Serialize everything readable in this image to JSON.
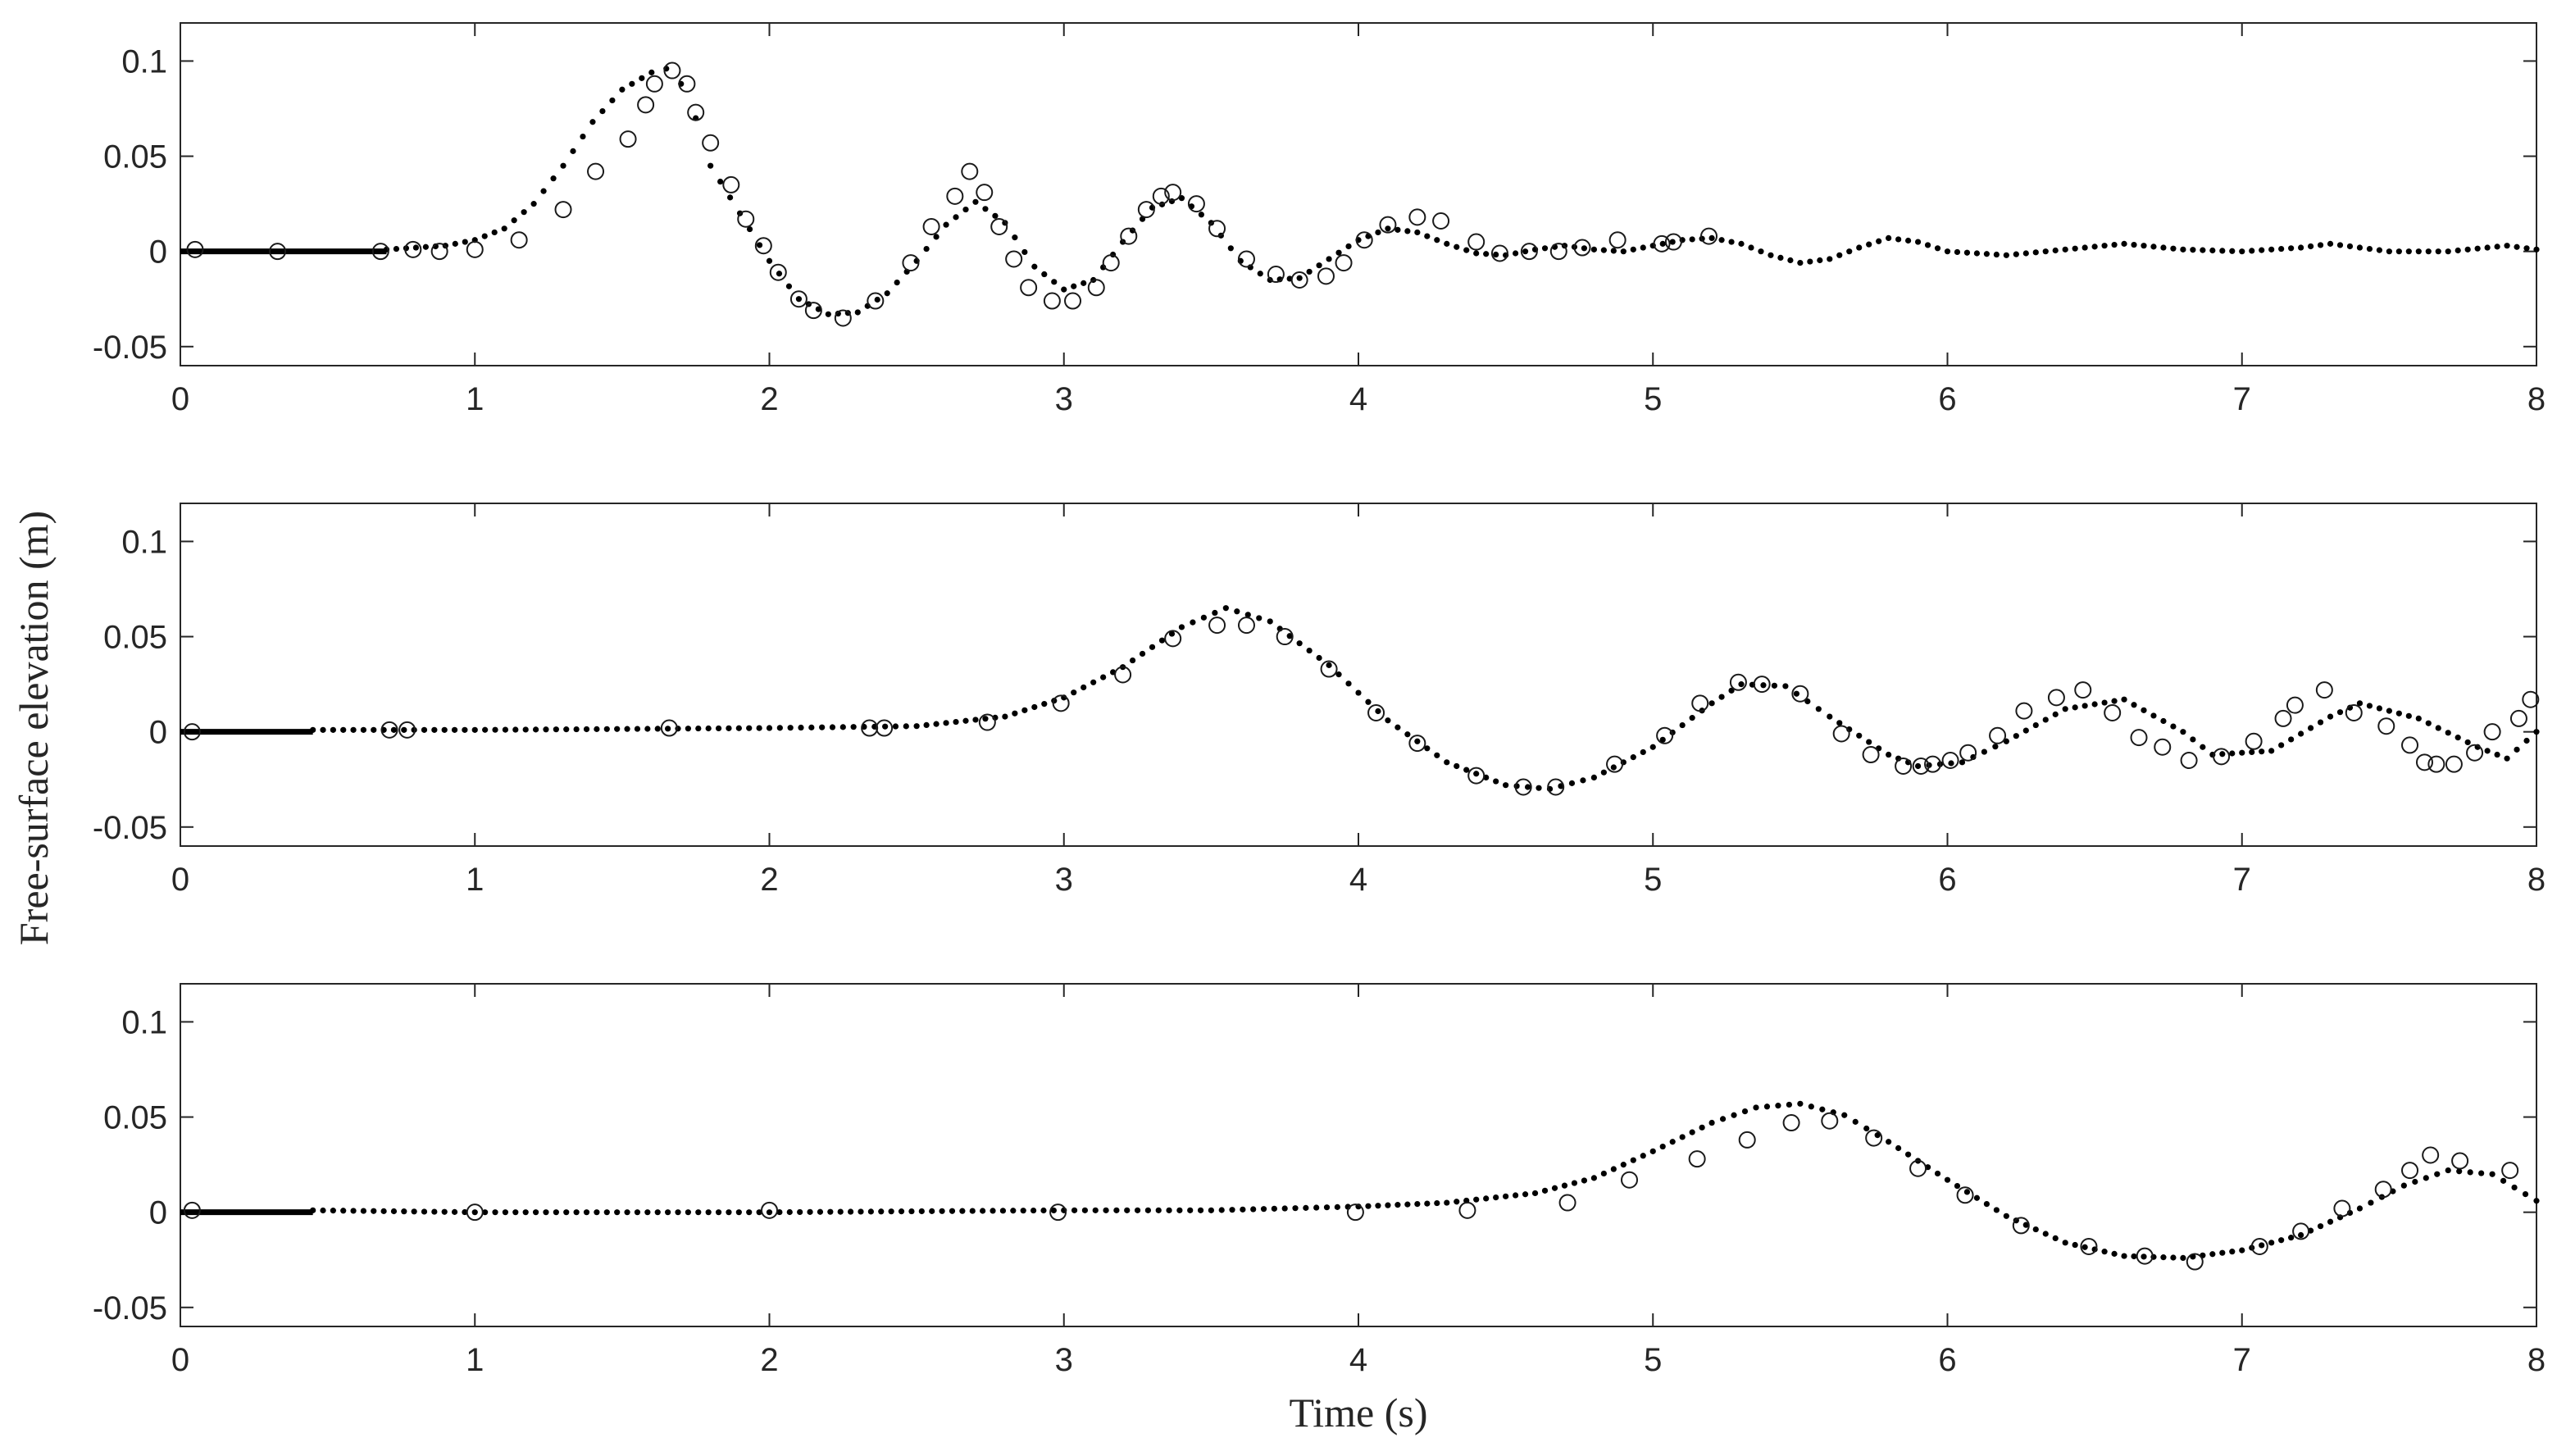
{
  "ylabel": "Free-surface elevation (m)",
  "xlabel": "Time (s)",
  "chart_data": [
    {
      "type": "scatter",
      "xlim": [
        0,
        8
      ],
      "ylim": [
        -0.06,
        0.12
      ],
      "xticks": [
        "0",
        "1",
        "2",
        "3",
        "4",
        "5",
        "6",
        "7",
        "8"
      ],
      "yticks": [
        "0.1",
        "0.05",
        "0",
        "-0.05"
      ],
      "series": [
        {
          "style": "dotted-line",
          "x": [
            0.7,
            0.8,
            0.9,
            1.0,
            1.1,
            1.2,
            1.3,
            1.4,
            1.5,
            1.6,
            1.65,
            1.7,
            1.75,
            1.8,
            1.9,
            2.0,
            2.1,
            2.2,
            2.3,
            2.4,
            2.5,
            2.6,
            2.7,
            2.8,
            2.9,
            3.0,
            3.1,
            3.2,
            3.3,
            3.4,
            3.5,
            3.6,
            3.7,
            3.8,
            3.9,
            4.0,
            4.1,
            4.2,
            4.3,
            4.4,
            4.5,
            4.6,
            4.7,
            4.8,
            4.9,
            5.0,
            5.1,
            5.2,
            5.3,
            5.4,
            5.5,
            5.6,
            5.7,
            5.8,
            5.9,
            6.0,
            6.2,
            6.4,
            6.6,
            6.8,
            7.0,
            7.2,
            7.3,
            7.5,
            7.7,
            7.9,
            8.0
          ],
          "y": [
            0.001,
            0.002,
            0.003,
            0.006,
            0.012,
            0.025,
            0.045,
            0.068,
            0.085,
            0.094,
            0.096,
            0.088,
            0.07,
            0.045,
            0.02,
            -0.005,
            -0.025,
            -0.033,
            -0.032,
            -0.022,
            -0.005,
            0.014,
            0.026,
            0.015,
            -0.008,
            -0.02,
            -0.015,
            0.005,
            0.023,
            0.028,
            0.015,
            -0.005,
            -0.015,
            -0.014,
            -0.004,
            0.006,
            0.012,
            0.01,
            0.004,
            -0.001,
            -0.002,
            0.001,
            0.003,
            0.001,
            0.0,
            0.003,
            0.006,
            0.007,
            0.004,
            -0.002,
            -0.006,
            -0.004,
            0.002,
            0.007,
            0.005,
            0.0,
            -0.002,
            0.001,
            0.004,
            0.001,
            0.0,
            0.002,
            0.004,
            0.0,
            0.0,
            0.003,
            0.001
          ]
        },
        {
          "style": "open-circles",
          "x": [
            0.05,
            0.33,
            0.68,
            0.79,
            0.88,
            1.0,
            1.15,
            1.3,
            1.41,
            1.52,
            1.58,
            1.61,
            1.67,
            1.72,
            1.75,
            1.8,
            1.87,
            1.92,
            1.98,
            2.03,
            2.1,
            2.15,
            2.25,
            2.36,
            2.48,
            2.55,
            2.63,
            2.68,
            2.73,
            2.78,
            2.83,
            2.88,
            2.96,
            3.03,
            3.11,
            3.16,
            3.22,
            3.28,
            3.33,
            3.37,
            3.45,
            3.52,
            3.62,
            3.72,
            3.8,
            3.89,
            3.95,
            4.02,
            4.1,
            4.2,
            4.28,
            4.4,
            4.48,
            4.58,
            4.68,
            4.76,
            4.88,
            5.03,
            5.07,
            5.19
          ],
          "y": [
            0.001,
            0.0,
            0.0,
            0.001,
            0.0,
            0.001,
            0.006,
            0.022,
            0.042,
            0.059,
            0.077,
            0.088,
            0.095,
            0.088,
            0.073,
            0.057,
            0.035,
            0.017,
            0.003,
            -0.011,
            -0.025,
            -0.031,
            -0.035,
            -0.026,
            -0.006,
            0.013,
            0.029,
            0.042,
            0.031,
            0.013,
            -0.004,
            -0.019,
            -0.026,
            -0.026,
            -0.019,
            -0.006,
            0.008,
            0.022,
            0.029,
            0.031,
            0.025,
            0.012,
            -0.004,
            -0.012,
            -0.015,
            -0.013,
            -0.006,
            0.006,
            0.014,
            0.018,
            0.016,
            0.005,
            -0.001,
            0.0,
            0.0,
            0.002,
            0.006,
            0.004,
            0.005,
            0.008
          ]
        }
      ]
    },
    {
      "type": "scatter",
      "xlim": [
        0,
        8
      ],
      "ylim": [
        -0.06,
        0.12
      ],
      "xticks": [
        "0",
        "1",
        "2",
        "3",
        "4",
        "5",
        "6",
        "7",
        "8"
      ],
      "yticks": [
        "0.1",
        "0.05",
        "0",
        "-0.05"
      ],
      "series": [
        {
          "style": "dotted-line",
          "x": [
            0.45,
            1.0,
            2.0,
            2.5,
            2.8,
            3.0,
            3.2,
            3.4,
            3.55,
            3.7,
            3.9,
            4.1,
            4.3,
            4.5,
            4.65,
            4.8,
            5.0,
            5.2,
            5.3,
            5.45,
            5.6,
            5.8,
            5.9,
            6.05,
            6.2,
            6.4,
            6.6,
            6.8,
            6.9,
            7.1,
            7.3,
            7.4,
            7.6,
            7.8,
            7.9,
            8.0
          ],
          "y": [
            0.001,
            0.001,
            0.002,
            0.003,
            0.008,
            0.018,
            0.034,
            0.055,
            0.065,
            0.058,
            0.035,
            0.006,
            -0.016,
            -0.028,
            -0.03,
            -0.024,
            -0.008,
            0.015,
            0.025,
            0.024,
            0.008,
            -0.012,
            -0.018,
            -0.016,
            -0.005,
            0.012,
            0.017,
            0.0,
            -0.012,
            -0.01,
            0.008,
            0.015,
            0.007,
            -0.008,
            -0.014,
            0.0
          ]
        },
        {
          "style": "open-circles",
          "x": [
            0.04,
            0.71,
            0.77,
            1.66,
            2.34,
            2.39,
            2.74,
            2.99,
            3.2,
            3.37,
            3.52,
            3.62,
            3.75,
            3.9,
            4.06,
            4.2,
            4.4,
            4.56,
            4.67,
            4.87,
            5.04,
            5.16,
            5.29,
            5.37,
            5.5,
            5.64,
            5.74,
            5.85,
            5.91,
            5.95,
            6.01,
            6.07,
            6.17,
            6.26,
            6.37,
            6.46,
            6.56,
            6.65,
            6.73,
            6.82,
            6.93,
            7.04,
            7.14,
            7.18,
            7.28,
            7.38,
            7.49,
            7.57,
            7.62,
            7.66,
            7.72,
            7.79,
            7.85,
            7.94,
            7.98
          ],
          "y": [
            0.0,
            0.001,
            0.001,
            0.002,
            0.002,
            0.002,
            0.005,
            0.015,
            0.03,
            0.049,
            0.056,
            0.056,
            0.05,
            0.033,
            0.01,
            -0.006,
            -0.023,
            -0.029,
            -0.029,
            -0.017,
            -0.002,
            0.015,
            0.026,
            0.025,
            0.02,
            -0.001,
            -0.012,
            -0.018,
            -0.018,
            -0.017,
            -0.015,
            -0.011,
            -0.002,
            0.011,
            0.018,
            0.022,
            0.01,
            -0.003,
            -0.008,
            -0.015,
            -0.013,
            -0.005,
            0.007,
            0.014,
            0.022,
            0.01,
            0.003,
            -0.007,
            -0.016,
            -0.017,
            -0.017,
            -0.011,
            0.0,
            0.007,
            0.017
          ]
        }
      ]
    },
    {
      "type": "scatter",
      "xlim": [
        0,
        8
      ],
      "ylim": [
        -0.06,
        0.12
      ],
      "xticks": [
        "0",
        "1",
        "2",
        "3",
        "4",
        "5",
        "6",
        "7",
        "8"
      ],
      "yticks": [
        "0.1",
        "0.05",
        "0",
        "-0.05"
      ],
      "series": [
        {
          "style": "dotted-line",
          "x": [
            0.45,
            1.0,
            2.0,
            3.0,
            3.5,
            4.0,
            4.3,
            4.6,
            4.8,
            5.0,
            5.2,
            5.35,
            5.5,
            5.65,
            5.8,
            6.0,
            6.2,
            6.4,
            6.6,
            6.8,
            7.0,
            7.2,
            7.4,
            7.55,
            7.7,
            7.85,
            8.0
          ],
          "y": [
            0.001,
            0.0,
            0.0,
            0.001,
            0.001,
            0.003,
            0.005,
            0.01,
            0.018,
            0.032,
            0.047,
            0.055,
            0.057,
            0.051,
            0.037,
            0.017,
            -0.002,
            -0.016,
            -0.023,
            -0.024,
            -0.02,
            -0.012,
            0.002,
            0.014,
            0.022,
            0.02,
            0.006
          ]
        },
        {
          "style": "open-circles",
          "x": [
            0.04,
            1.0,
            2.0,
            2.98,
            3.99,
            4.37,
            4.71,
            4.92,
            5.15,
            5.32,
            5.47,
            5.6,
            5.75,
            5.9,
            6.06,
            6.25,
            6.48,
            6.67,
            6.84,
            7.06,
            7.2,
            7.34,
            7.48,
            7.57,
            7.64,
            7.74,
            7.91
          ],
          "y": [
            0.001,
            0.0,
            0.001,
            0.0,
            0.0,
            0.001,
            0.005,
            0.017,
            0.028,
            0.038,
            0.047,
            0.048,
            0.039,
            0.023,
            0.009,
            -0.007,
            -0.018,
            -0.023,
            -0.026,
            -0.018,
            -0.01,
            0.002,
            0.012,
            0.022,
            0.03,
            0.027,
            0.022
          ]
        }
      ]
    }
  ]
}
